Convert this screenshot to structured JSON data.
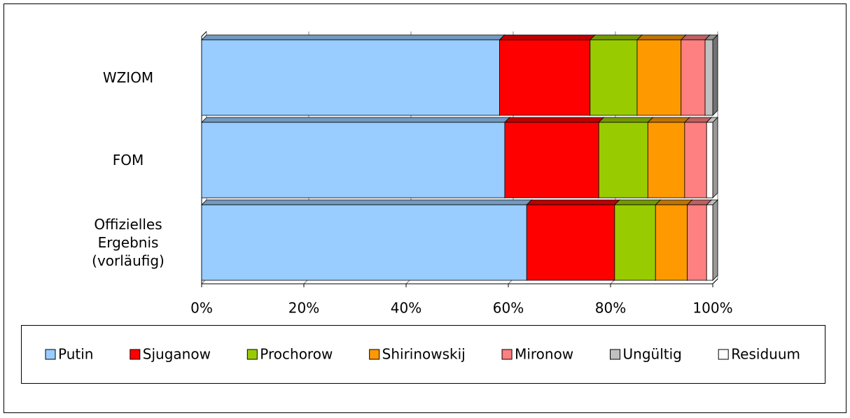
{
  "chart_data": {
    "type": "stacked-bar-horizontal",
    "categories": [
      "WZIOM",
      "FOM",
      "Offizielles Ergebnis (vorläufig)"
    ],
    "series": [
      {
        "name": "Putin",
        "color": "#99ccff",
        "values": [
          58.3,
          59.3,
          63.6
        ]
      },
      {
        "name": "Sjuganow",
        "color": "#ff0000",
        "values": [
          17.7,
          18.4,
          17.2
        ]
      },
      {
        "name": "Prochorow",
        "color": "#99cc00",
        "values": [
          9.2,
          9.6,
          8.0
        ]
      },
      {
        "name": "Shirinowskij",
        "color": "#ff9900",
        "values": [
          8.6,
          7.2,
          6.2
        ]
      },
      {
        "name": "Mironow",
        "color": "#ff8080",
        "values": [
          4.7,
          4.3,
          3.8
        ]
      },
      {
        "name": "Ungültig",
        "color": "#c0c0c0",
        "values": [
          1.5,
          0,
          0
        ]
      },
      {
        "name": "Residuum",
        "color": "#ffffff",
        "values": [
          0,
          1.2,
          1.2
        ]
      }
    ],
    "xlim": [
      0,
      100
    ],
    "xticks": [
      {
        "value": 0,
        "label": "0%"
      },
      {
        "value": 20,
        "label": "20%"
      },
      {
        "value": 40,
        "label": "40%"
      },
      {
        "value": 60,
        "label": "60%"
      },
      {
        "value": 80,
        "label": "80%"
      },
      {
        "value": 100,
        "label": "100%"
      }
    ],
    "grid": true,
    "legend": "bottom"
  }
}
